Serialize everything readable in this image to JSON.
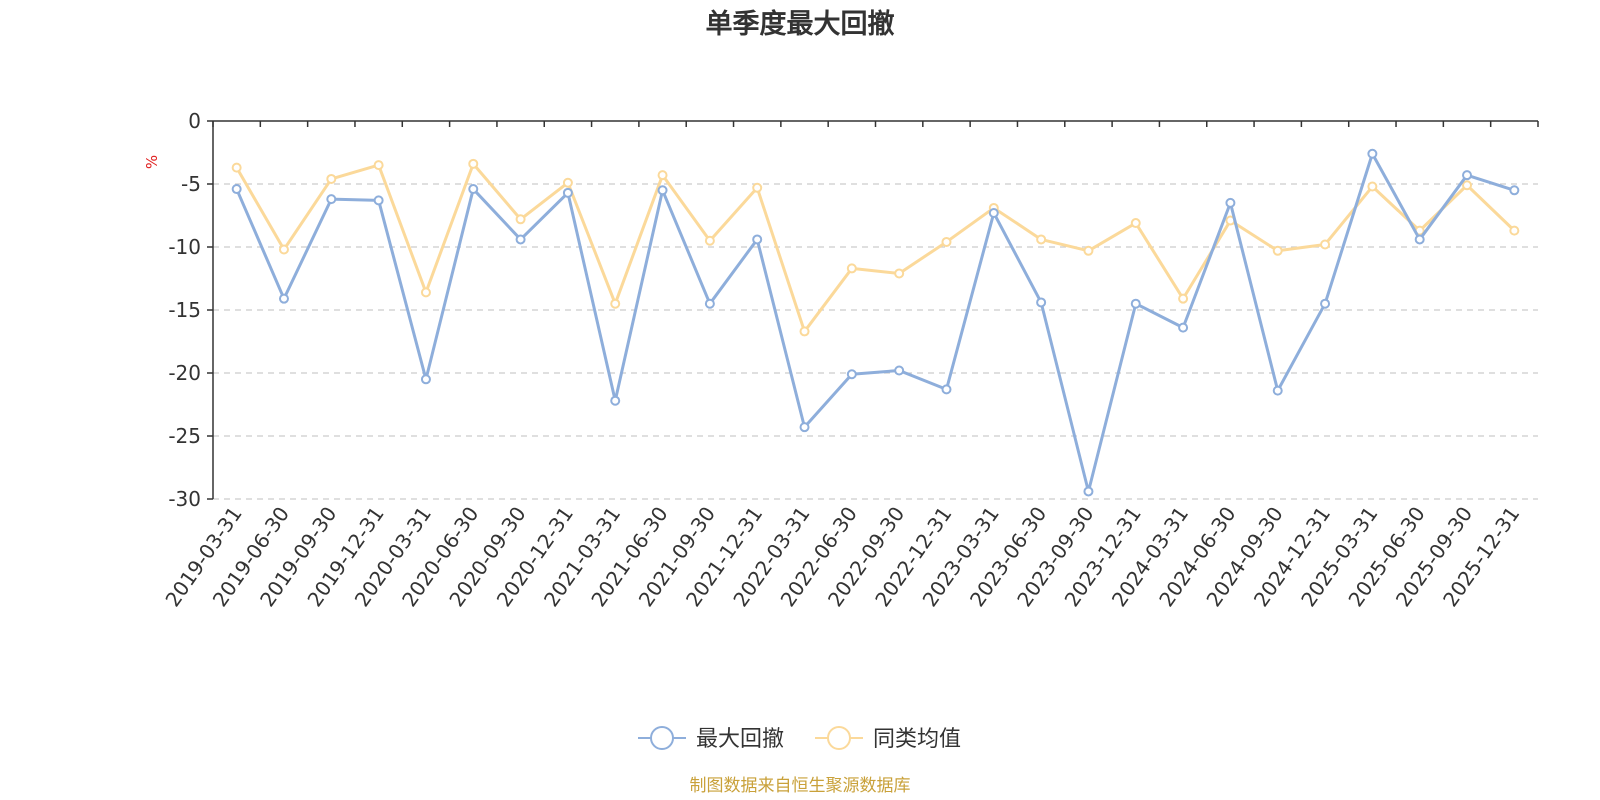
{
  "chart_data": {
    "type": "line",
    "title": "单季度最大回撤",
    "ylabel": "%",
    "ylim": [
      -30,
      0
    ],
    "y_ticks": [
      0,
      -5,
      -10,
      -15,
      -20,
      -25,
      -30
    ],
    "grid": true,
    "legend_position": "bottom-center",
    "categories": [
      "2019-03-31",
      "2019-06-30",
      "2019-09-30",
      "2019-12-31",
      "2020-03-31",
      "2020-06-30",
      "2020-09-30",
      "2020-12-31",
      "2021-03-31",
      "2021-06-30",
      "2021-09-30",
      "2021-12-31",
      "2022-03-31",
      "2022-06-30",
      "2022-09-30",
      "2022-12-31",
      "2023-03-31",
      "2023-06-30",
      "2023-09-30",
      "2023-12-31",
      "2024-03-31",
      "2024-06-30",
      "2024-09-30",
      "2024-12-31",
      "2025-03-31",
      "2025-06-30",
      "2025-09-30",
      "2025-12-31"
    ],
    "series": [
      {
        "name": "最大回撤",
        "color": "#8eaedb",
        "values": [
          -5.4,
          -14.1,
          -6.2,
          -6.3,
          -20.5,
          -5.4,
          -9.4,
          -5.7,
          -22.2,
          -5.5,
          -14.5,
          -9.4,
          -24.3,
          -20.1,
          -19.8,
          -21.3,
          -7.3,
          -14.4,
          -29.4,
          -14.5,
          -16.4,
          -6.5,
          -21.4,
          -14.5,
          -2.6,
          -9.4,
          -4.3,
          -5.5
        ]
      },
      {
        "name": "同类均值",
        "color": "#fbd99a",
        "values": [
          -3.7,
          -10.2,
          -4.6,
          -3.5,
          -13.6,
          -3.4,
          -7.8,
          -4.9,
          -14.5,
          -4.3,
          -9.5,
          -5.3,
          -16.7,
          -11.7,
          -12.1,
          -9.6,
          -6.9,
          -9.4,
          -10.3,
          -8.1,
          -14.1,
          -7.9,
          -10.3,
          -9.8,
          -5.2,
          -8.7,
          -5.1,
          -8.7
        ]
      }
    ]
  },
  "colors": {
    "axis": "#333333",
    "grid": "#cccccc",
    "unit": "#e02020",
    "source": "#c9a13a"
  },
  "source_text": "制图数据来自恒生聚源数据库"
}
